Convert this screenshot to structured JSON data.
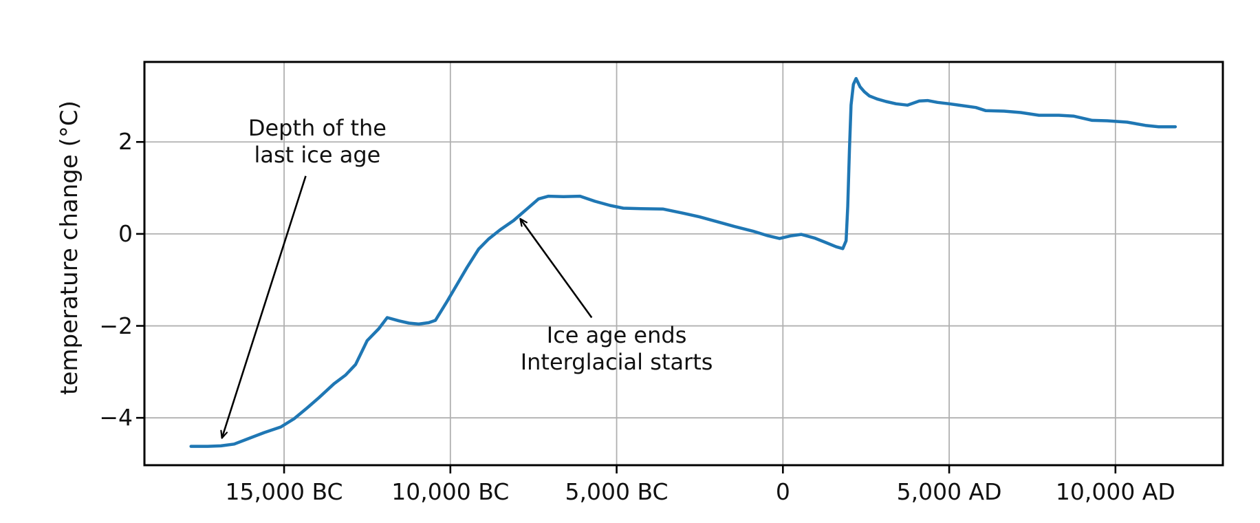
{
  "chart_data": {
    "type": "line",
    "title": "",
    "xlabel": "",
    "ylabel": "temperature change (°C)",
    "grid": true,
    "legend": "none",
    "xlim": [
      -19200,
      13230
    ],
    "ylim": [
      -5.03,
      3.74
    ],
    "colors": {
      "line": "#1f77b4",
      "grid": "#b0b0b0",
      "axis": "#000000",
      "text": "#111111",
      "background": "#ffffff"
    },
    "x_ticks": [
      {
        "value": -15000,
        "label": "15,000 BC"
      },
      {
        "value": -10000,
        "label": "10,000 BC"
      },
      {
        "value": -5000,
        "label": "5,000 BC"
      },
      {
        "value": 0,
        "label": "0"
      },
      {
        "value": 5000,
        "label": "5,000 AD"
      },
      {
        "value": 10000,
        "label": "10,000 AD"
      }
    ],
    "y_ticks": [
      {
        "value": 2,
        "label": "2"
      },
      {
        "value": 0,
        "label": "0"
      },
      {
        "value": -2,
        "label": "−2"
      },
      {
        "value": -4,
        "label": "−4"
      }
    ],
    "series": [
      {
        "name": "temperature change",
        "color": "#1f77b4",
        "points": [
          [
            -17800,
            -4.62
          ],
          [
            -17300,
            -4.62
          ],
          [
            -16900,
            -4.61
          ],
          [
            -16500,
            -4.57
          ],
          [
            -16100,
            -4.46
          ],
          [
            -15600,
            -4.32
          ],
          [
            -15100,
            -4.2
          ],
          [
            -14700,
            -4.02
          ],
          [
            -14300,
            -3.78
          ],
          [
            -13950,
            -3.56
          ],
          [
            -13500,
            -3.26
          ],
          [
            -13150,
            -3.07
          ],
          [
            -12850,
            -2.84
          ],
          [
            -12500,
            -2.32
          ],
          [
            -12150,
            -2.06
          ],
          [
            -11900,
            -1.82
          ],
          [
            -11550,
            -1.89
          ],
          [
            -11250,
            -1.94
          ],
          [
            -10950,
            -1.96
          ],
          [
            -10650,
            -1.93
          ],
          [
            -10450,
            -1.88
          ],
          [
            -10100,
            -1.47
          ],
          [
            -9800,
            -1.1
          ],
          [
            -9500,
            -0.73
          ],
          [
            -9150,
            -0.33
          ],
          [
            -8850,
            -0.11
          ],
          [
            -8500,
            0.09
          ],
          [
            -8100,
            0.29
          ],
          [
            -7700,
            0.54
          ],
          [
            -7350,
            0.76
          ],
          [
            -7050,
            0.82
          ],
          [
            -6600,
            0.81
          ],
          [
            -6100,
            0.82
          ],
          [
            -5650,
            0.71
          ],
          [
            -5200,
            0.62
          ],
          [
            -4800,
            0.56
          ],
          [
            -4250,
            0.55
          ],
          [
            -3600,
            0.54
          ],
          [
            -3000,
            0.45
          ],
          [
            -2500,
            0.37
          ],
          [
            -1900,
            0.25
          ],
          [
            -1450,
            0.16
          ],
          [
            -900,
            0.06
          ],
          [
            -450,
            -0.04
          ],
          [
            -100,
            -0.1
          ],
          [
            250,
            -0.04
          ],
          [
            550,
            -0.01
          ],
          [
            950,
            -0.09
          ],
          [
            1300,
            -0.19
          ],
          [
            1600,
            -0.28
          ],
          [
            1800,
            -0.32
          ],
          [
            1900,
            -0.15
          ],
          [
            1950,
            0.6
          ],
          [
            2000,
            1.8
          ],
          [
            2050,
            2.8
          ],
          [
            2120,
            3.25
          ],
          [
            2200,
            3.38
          ],
          [
            2320,
            3.2
          ],
          [
            2450,
            3.09
          ],
          [
            2600,
            3.0
          ],
          [
            2850,
            2.93
          ],
          [
            3100,
            2.88
          ],
          [
            3400,
            2.83
          ],
          [
            3750,
            2.8
          ],
          [
            4100,
            2.89
          ],
          [
            4350,
            2.9
          ],
          [
            4650,
            2.86
          ],
          [
            5000,
            2.83
          ],
          [
            5400,
            2.79
          ],
          [
            5800,
            2.75
          ],
          [
            6100,
            2.68
          ],
          [
            6650,
            2.67
          ],
          [
            7150,
            2.64
          ],
          [
            7700,
            2.58
          ],
          [
            8300,
            2.58
          ],
          [
            8750,
            2.56
          ],
          [
            9300,
            2.47
          ],
          [
            9750,
            2.46
          ],
          [
            10350,
            2.43
          ],
          [
            10900,
            2.36
          ],
          [
            11300,
            2.33
          ],
          [
            11800,
            2.33
          ]
        ]
      }
    ],
    "annotations": [
      {
        "id": "depth-of-last-ice-age",
        "lines": [
          "Depth of the",
          "last ice age"
        ],
        "text_xy": [
          -14000,
          2.0
        ],
        "arrow_from": [
          -14350,
          1.26
        ],
        "arrow_to": [
          -16870,
          -4.44
        ]
      },
      {
        "id": "ice-age-ends",
        "lines": [
          "Ice age ends",
          "Interglacial starts"
        ],
        "text_xy": [
          -5000,
          -2.5
        ],
        "arrow_from": [
          -5750,
          -1.82
        ],
        "arrow_to": [
          -7900,
          0.33
        ]
      }
    ]
  }
}
